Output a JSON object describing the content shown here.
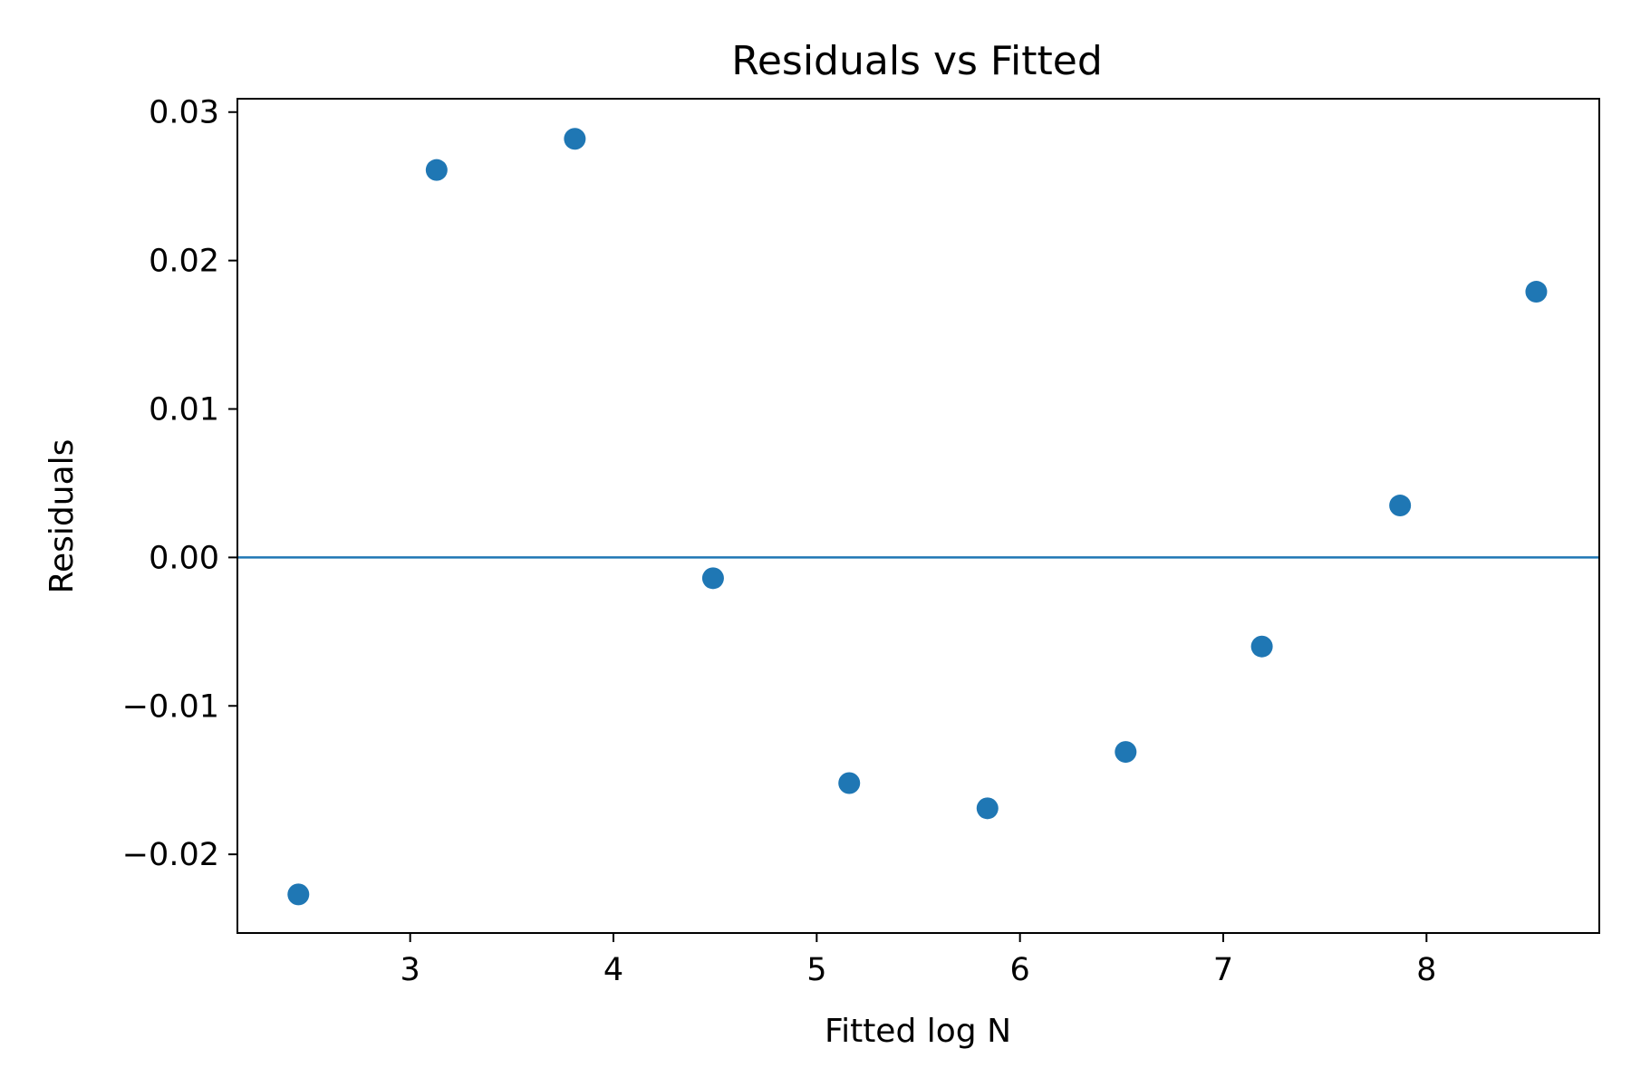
{
  "chart_data": {
    "type": "scatter",
    "title": "Residuals vs Fitted",
    "xlabel": "Fitted log N",
    "ylabel": "Residuals",
    "xlim": [
      2.15,
      8.85
    ],
    "ylim": [
      -0.0253,
      0.0309
    ],
    "xticks": [
      3,
      4,
      5,
      6,
      7,
      8
    ],
    "xtick_labels": [
      "3",
      "4",
      "5",
      "6",
      "7",
      "8"
    ],
    "yticks": [
      -0.02,
      -0.01,
      0.0,
      0.01,
      0.02,
      0.03
    ],
    "ytick_labels": [
      "−0.02",
      "−0.01",
      "0.00",
      "0.01",
      "0.02",
      "0.03"
    ],
    "grid": false,
    "reference_line_y": 0.0,
    "colors": {
      "points": "#1f77b4",
      "reference_line": "#1f77b4"
    },
    "series": [
      {
        "x": [
          2.45,
          3.13,
          3.81,
          4.49,
          5.16,
          5.84,
          6.52,
          7.19,
          7.87,
          8.54
        ],
        "y": [
          -0.0227,
          0.0261,
          0.0282,
          -0.0014,
          -0.0152,
          -0.0169,
          -0.0131,
          -0.006,
          0.0035,
          0.0179
        ]
      }
    ]
  }
}
